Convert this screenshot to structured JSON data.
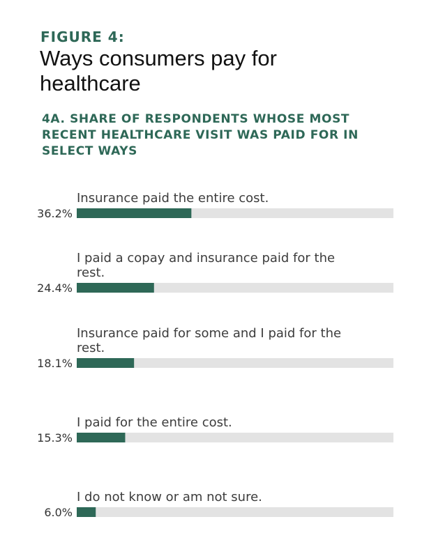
{
  "figure": {
    "label": "FIGURE 4:",
    "title": "Ways consumers pay for healthcare",
    "subtitle": "4A. SHARE OF RESPONDENTS WHOSE MOST RECENT HEALTHCARE VISIT WAS PAID FOR IN SELECT WAYS"
  },
  "colors": {
    "accent": "#2e6857",
    "track": "#e3e3e3",
    "title_text": "#111111",
    "body_text": "#3c3c3c"
  },
  "chart_data": {
    "type": "bar",
    "orientation": "horizontal",
    "title": "4A. SHARE OF RESPONDENTS WHOSE MOST RECENT HEALTHCARE VISIT WAS PAID FOR IN SELECT WAYS",
    "xlim": [
      0,
      100
    ],
    "unit": "%",
    "categories": [
      [
        "Insurance paid the entire cost."
      ],
      [
        "I paid a copay and insurance paid for the",
        "rest."
      ],
      [
        "Insurance paid for some and I paid for the",
        "rest."
      ],
      [
        "I paid for the entire cost."
      ],
      [
        "I do not know or am not sure."
      ]
    ],
    "values": [
      36.2,
      24.4,
      18.1,
      15.3,
      6.0
    ],
    "value_labels": [
      "36.2%",
      "24.4%",
      "18.1%",
      "15.3%",
      "6.0%"
    ]
  }
}
